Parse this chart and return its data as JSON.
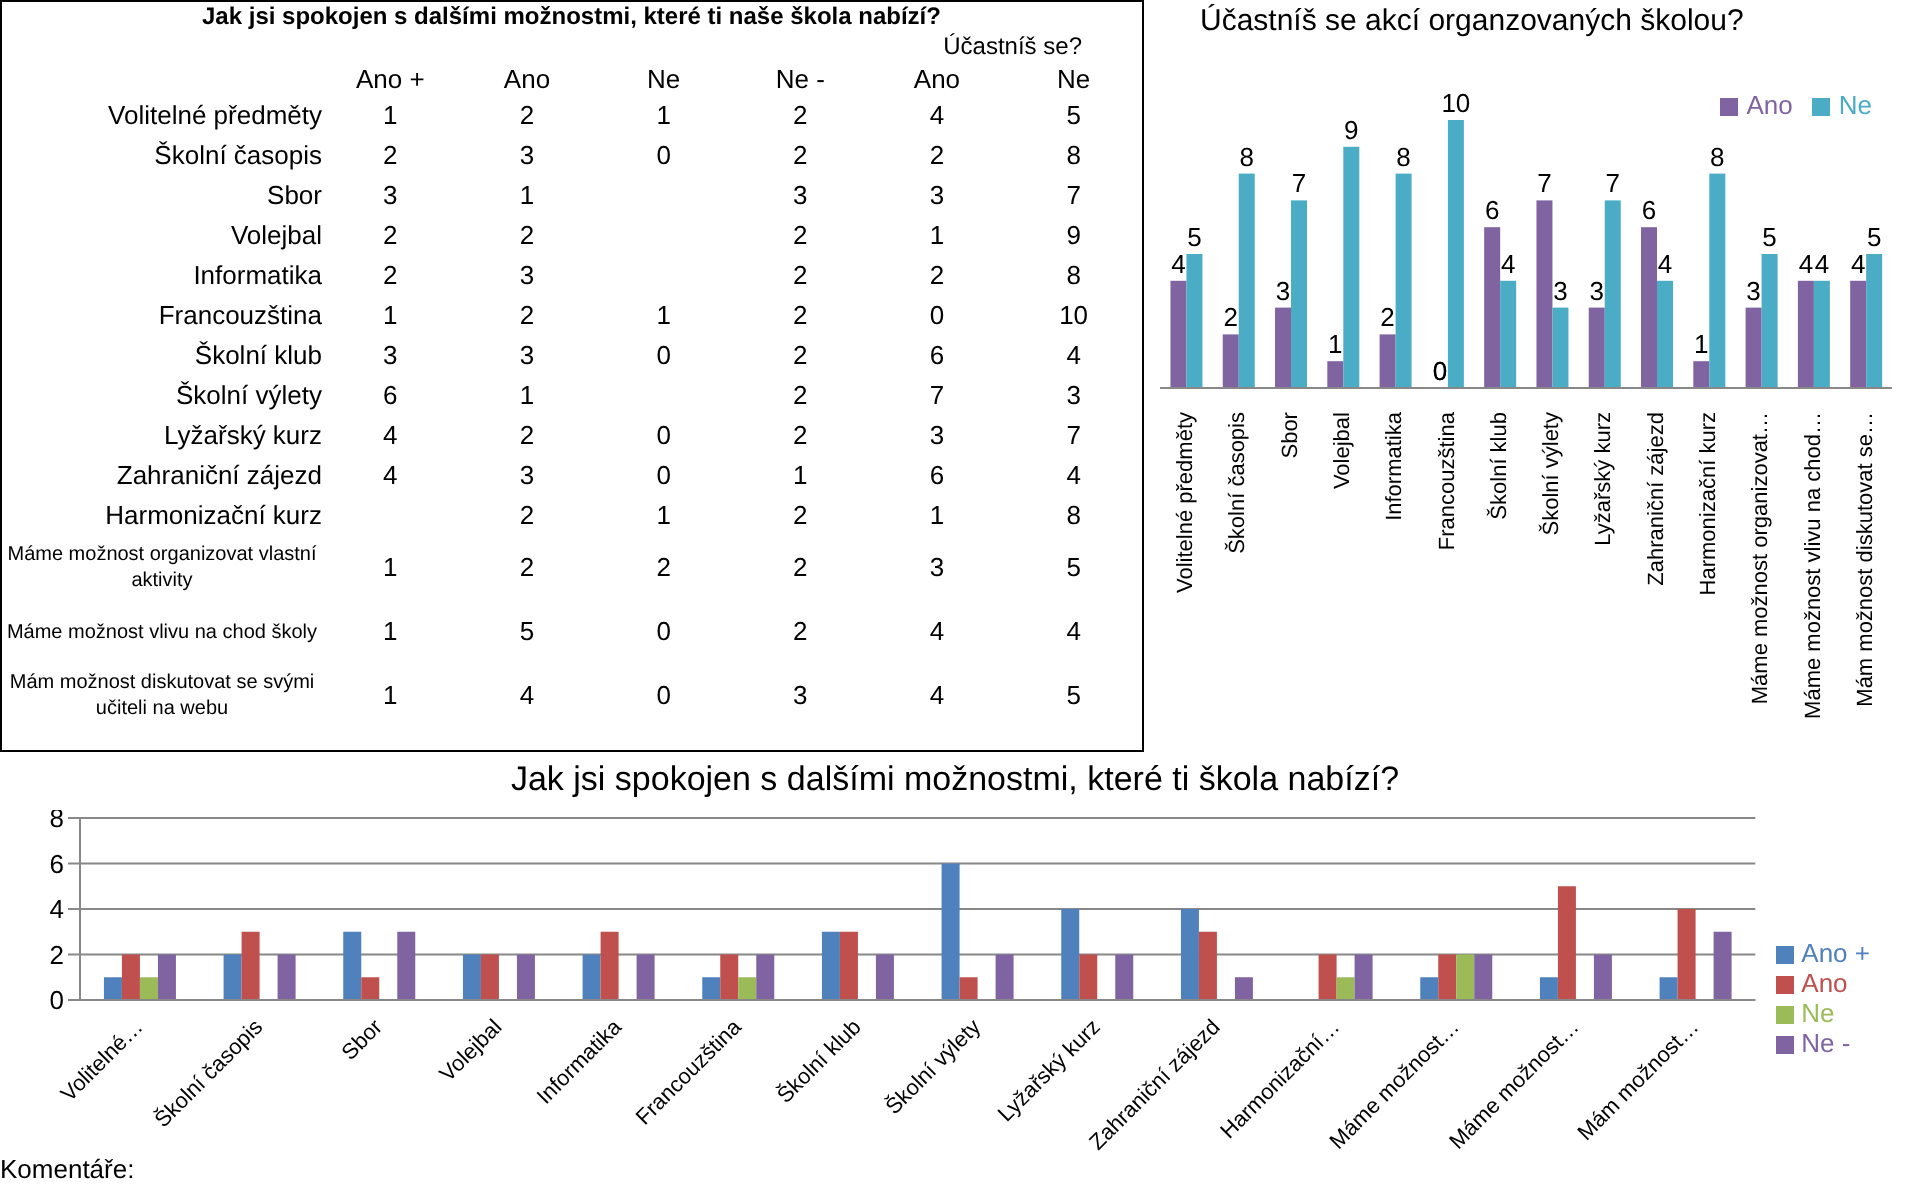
{
  "chart_data": [
    {
      "type": "other",
      "title": "Jak jsi spokojen s dalšími možnostmi, které ti naše škola nabízí?",
      "subtitle": "Účastníš se?",
      "data_labels": true,
      "categories": [
        "Volitelné předměty",
        "Školní časopis",
        "Sbor",
        "Volejbal",
        "Informatika",
        "Francouzština",
        "Školní klub",
        "Školní výlety",
        "Lyžařský kurz",
        "Zahraniční zájezd",
        "Harmonizační kurz",
        "Máme možnost organizovat vlastní aktivity",
        "Máme možnost vlivu na chod školy",
        "Mám možnost diskutovat se svými učiteli na webu"
      ],
      "series": [
        {
          "name": "Ano +",
          "values": [
            1,
            2,
            3,
            2,
            2,
            1,
            3,
            6,
            4,
            4,
            null,
            1,
            1,
            1
          ]
        },
        {
          "name": "Ano",
          "values": [
            2,
            3,
            1,
            2,
            3,
            2,
            3,
            1,
            2,
            3,
            2,
            2,
            5,
            4
          ]
        },
        {
          "name": "Ne",
          "values": [
            1,
            0,
            null,
            null,
            null,
            1,
            0,
            null,
            0,
            0,
            1,
            2,
            0,
            0
          ]
        },
        {
          "name": "Ne -",
          "values": [
            2,
            2,
            3,
            2,
            2,
            2,
            2,
            2,
            2,
            1,
            2,
            2,
            2,
            3
          ]
        },
        {
          "name": "Ano",
          "values": [
            4,
            2,
            3,
            1,
            2,
            0,
            6,
            7,
            3,
            6,
            1,
            3,
            4,
            4
          ]
        },
        {
          "name": "Ne",
          "values": [
            5,
            8,
            7,
            9,
            8,
            10,
            4,
            3,
            7,
            4,
            8,
            5,
            4,
            5
          ]
        }
      ]
    },
    {
      "type": "bar",
      "title": "Účastníš se akcí organzovaných školou?",
      "data_labels": true,
      "tick_labels": "x",
      "legend": "top right",
      "categories": [
        "Volitelné předměty",
        "Školní časopis",
        "Sbor",
        "Volejbal",
        "Informatika",
        "Francouzština",
        "Školní klub",
        "Školní výlety",
        "Lyžařský kurz",
        "Zahraniční zájezd",
        "Harmonizační kurz",
        "Máme možnost organizovat…",
        "Máme možnost vlivu na chod…",
        "Mám možnost diskutovat se…"
      ],
      "series": [
        {
          "name": "Ano",
          "color": "#8064a2",
          "values": [
            4,
            2,
            3,
            1,
            2,
            0,
            6,
            7,
            3,
            6,
            1,
            3,
            4,
            4
          ]
        },
        {
          "name": "Ne",
          "color": "#4bacc6",
          "values": [
            5,
            8,
            7,
            9,
            8,
            10,
            4,
            3,
            7,
            4,
            8,
            5,
            4,
            5
          ]
        }
      ]
    },
    {
      "type": "bar",
      "title": "Jak jsi spokojen s dalšími možnostmi, které ti škola nabízí?",
      "legend": "right",
      "grid": "y",
      "ylim": [
        0,
        8
      ],
      "yticks": [
        0,
        2,
        4,
        6,
        8
      ],
      "categories": [
        "Volitelné…",
        "Školní časopis",
        "Sbor",
        "Volejbal",
        "Informatika",
        "Francouzština",
        "Školní klub",
        "Školní výlety",
        "Lyžařský kurz",
        "Zahraniční zájezd",
        "Harmonizační…",
        "Máme možnost…",
        "Máme možnost…",
        "Mám možnost…"
      ],
      "series": [
        {
          "name": "Ano +",
          "color": "#4f81bd",
          "values": [
            1,
            2,
            3,
            2,
            2,
            1,
            3,
            6,
            4,
            4,
            null,
            1,
            1,
            1
          ]
        },
        {
          "name": "Ano",
          "color": "#c0504d",
          "values": [
            2,
            3,
            1,
            2,
            3,
            2,
            3,
            1,
            2,
            3,
            2,
            2,
            5,
            4
          ]
        },
        {
          "name": "Ne",
          "color": "#9bbb59",
          "values": [
            1,
            0,
            null,
            null,
            null,
            1,
            0,
            null,
            0,
            0,
            1,
            2,
            0,
            0
          ]
        },
        {
          "name": "Ne -",
          "color": "#8064a2",
          "values": [
            2,
            2,
            3,
            2,
            2,
            2,
            2,
            2,
            2,
            1,
            2,
            2,
            2,
            3
          ]
        }
      ],
      "annotations": [
        "Komentáře:"
      ]
    }
  ]
}
